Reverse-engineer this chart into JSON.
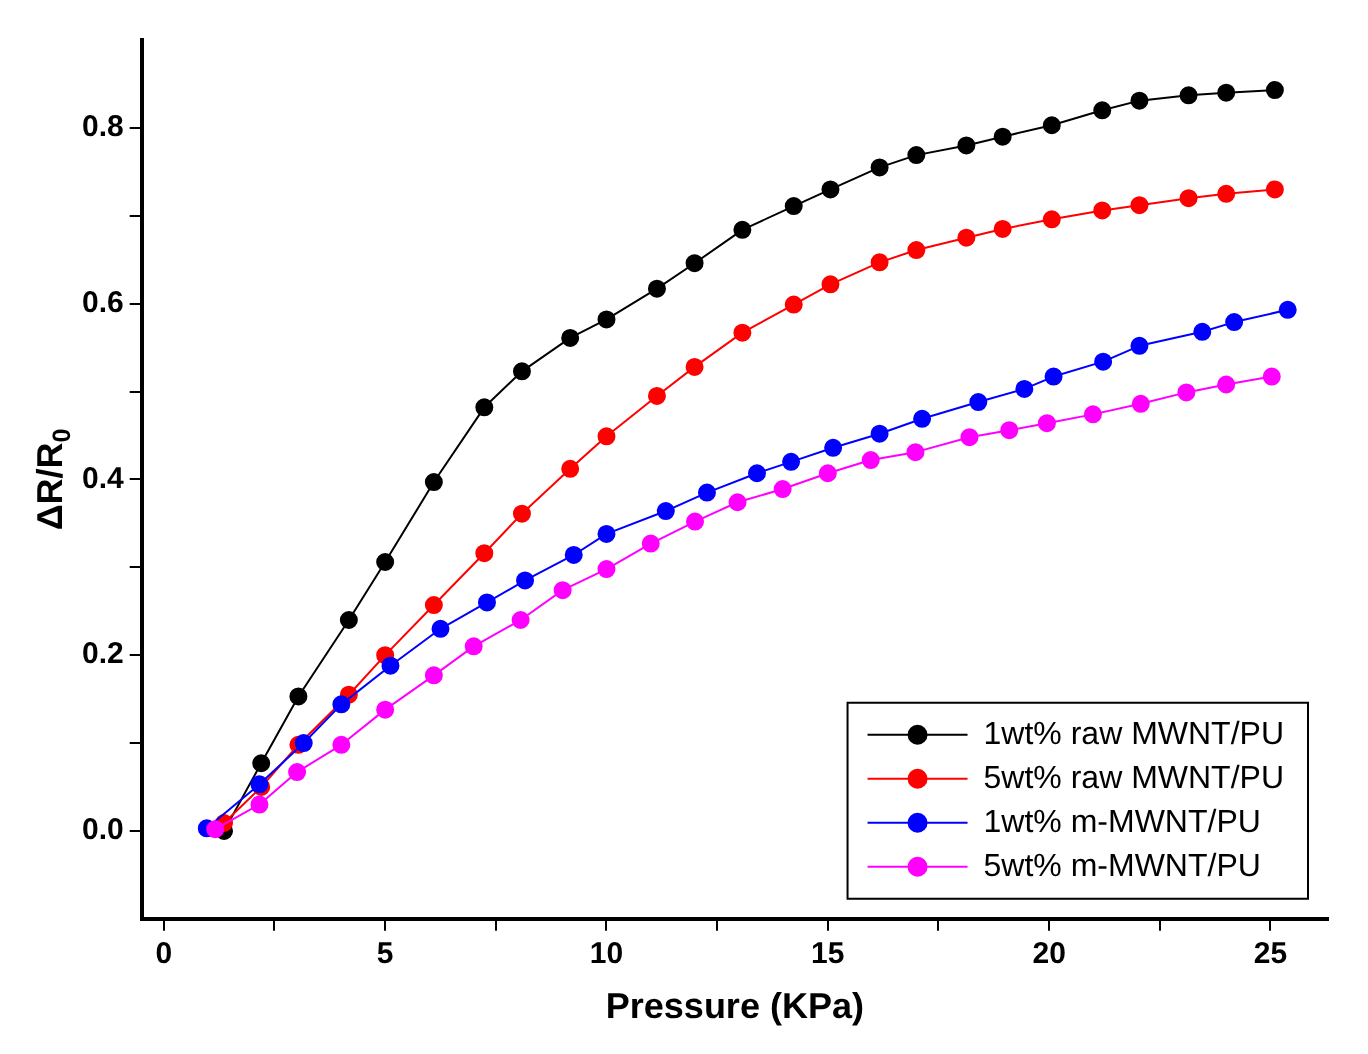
{
  "chart_data": {
    "type": "line",
    "xlabel": "Pressure (KPa)",
    "ylabel": "ΔR/R$_{0}$",
    "xlim": [
      -0.5,
      26.3
    ],
    "ylim": [
      -0.1,
      0.9
    ],
    "xticks": [
      0,
      {
        "value": 2.5,
        "label": null
      },
      5,
      {
        "value": 7.5,
        "label": null
      },
      10,
      {
        "value": 12.5,
        "label": null
      },
      15,
      {
        "value": 17.5,
        "label": null
      },
      20,
      {
        "value": 22.5,
        "label": null
      },
      25
    ],
    "yticks": [
      {
        "value": 0,
        "label": "0.0"
      },
      {
        "value": 0.1,
        "label": null
      },
      0.2,
      {
        "value": 0.3,
        "label": null
      },
      0.4,
      {
        "value": 0.5,
        "label": null
      },
      0.6,
      {
        "value": 0.7,
        "label": null
      },
      0.8
    ],
    "grid": false,
    "legend": "bottom right",
    "marker": "circle",
    "line_style": "solid",
    "series": [
      {
        "name": "1wt% raw MWNT/PU",
        "color": "#000000",
        "x": [
          1.36,
          2.2,
          3.04,
          4.18,
          5.0,
          6.1,
          7.24,
          8.09,
          9.18,
          10.0,
          11.14,
          11.99,
          13.07,
          14.23,
          15.06,
          16.17,
          17.0,
          18.13,
          18.95,
          20.06,
          21.2,
          22.04,
          23.15,
          24.0,
          25.1
        ],
        "values": [
          0.0,
          0.077,
          0.153,
          0.24,
          0.306,
          0.397,
          0.482,
          0.523,
          0.561,
          0.582,
          0.617,
          0.646,
          0.684,
          0.711,
          0.73,
          0.755,
          0.769,
          0.78,
          0.79,
          0.803,
          0.82,
          0.831,
          0.837,
          0.84,
          0.843
        ]
      },
      {
        "name": "5wt% raw MWNT/PU",
        "color": "#ff0000",
        "x": [
          1.36,
          2.2,
          3.04,
          4.18,
          5.0,
          6.1,
          7.24,
          8.09,
          9.18,
          10.0,
          11.14,
          11.99,
          13.07,
          14.23,
          15.06,
          16.17,
          17.0,
          18.13,
          18.95,
          20.06,
          21.2,
          22.04,
          23.15,
          24.0,
          25.1
        ],
        "values": [
          0.009,
          0.05,
          0.098,
          0.155,
          0.2,
          0.257,
          0.316,
          0.361,
          0.412,
          0.449,
          0.495,
          0.528,
          0.567,
          0.599,
          0.622,
          0.647,
          0.661,
          0.675,
          0.685,
          0.696,
          0.706,
          0.712,
          0.72,
          0.725,
          0.73
        ]
      },
      {
        "name": "1wt% m-MWNT/PU",
        "color": "#0000ff",
        "x": [
          0.97,
          2.16,
          3.16,
          4.01,
          5.12,
          6.25,
          7.3,
          8.16,
          9.26,
          10.0,
          11.34,
          12.27,
          13.4,
          14.17,
          15.12,
          16.17,
          17.13,
          18.4,
          19.44,
          20.1,
          21.22,
          22.04,
          23.46,
          24.18,
          25.39
        ],
        "values": [
          0.003,
          0.053,
          0.1,
          0.144,
          0.188,
          0.23,
          0.26,
          0.285,
          0.314,
          0.338,
          0.364,
          0.385,
          0.407,
          0.42,
          0.436,
          0.452,
          0.469,
          0.488,
          0.503,
          0.517,
          0.534,
          0.552,
          0.568,
          0.579,
          0.593
        ]
      },
      {
        "name": "5wt% m-MWNT/PU",
        "color": "#ff00ff",
        "x": [
          1.16,
          2.16,
          3.01,
          4.01,
          5.0,
          6.1,
          7.0,
          8.06,
          9.01,
          10.0,
          11.0,
          12.0,
          12.96,
          13.98,
          15.0,
          15.97,
          16.98,
          18.2,
          19.1,
          19.95,
          20.99,
          22.07,
          23.1,
          24.0,
          25.03
        ],
        "values": [
          0.002,
          0.03,
          0.067,
          0.098,
          0.138,
          0.177,
          0.21,
          0.24,
          0.274,
          0.298,
          0.327,
          0.352,
          0.374,
          0.389,
          0.407,
          0.422,
          0.431,
          0.448,
          0.456,
          0.464,
          0.474,
          0.486,
          0.499,
          0.508,
          0.517
        ]
      }
    ]
  }
}
